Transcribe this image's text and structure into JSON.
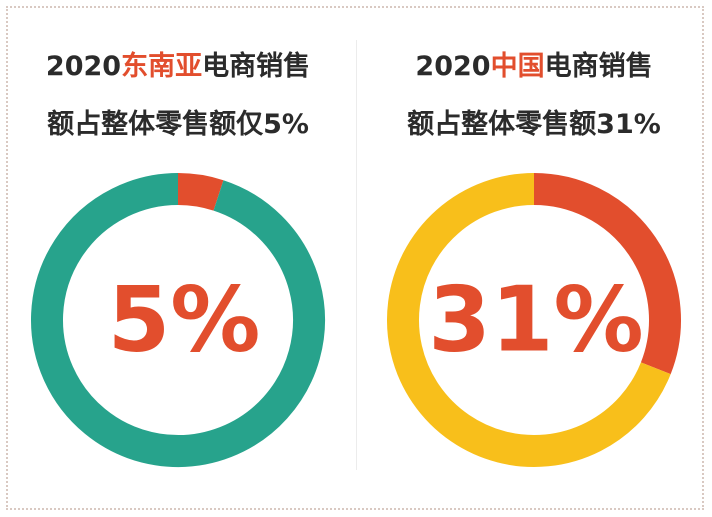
{
  "colors": {
    "highlight": "#e24e2d",
    "rest_left": "#27a38c",
    "rest_right": "#f8bf1b",
    "text": "#2b2b2b"
  },
  "chart_data": [
    {
      "type": "pie",
      "title_line1_prefix": "2020",
      "title_line1_highlight": "东南亚",
      "title_line1_suffix": "电商销售",
      "title_line2": "额占整体零售额仅5%",
      "center_label": "5%",
      "values": [
        5,
        95
      ],
      "colors": [
        "#e24e2d",
        "#27a38c"
      ]
    },
    {
      "type": "pie",
      "title_line1_prefix": "2020",
      "title_line1_highlight": "中国",
      "title_line1_suffix": "电商销售",
      "title_line2": "额占整体零售额31%",
      "center_label": "31%",
      "values": [
        31,
        69
      ],
      "colors": [
        "#e24e2d",
        "#f8bf1b"
      ]
    }
  ]
}
